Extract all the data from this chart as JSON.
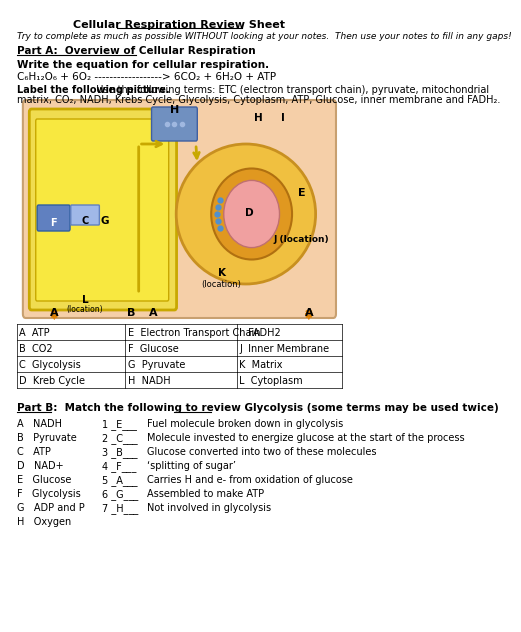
{
  "title": "Cellular Respiration Review Sheet",
  "subtitle": "Try to complete as much as possible WITHOUT looking at your notes.  Then use your notes to fill in any gaps!",
  "part_a_header": "Part A:  Overview of Cellular Respiration",
  "write_eq": "Write the equation for cellular respiration.",
  "equation": "C₆H₁₂O₆ + 6O₂ ------------------> 6CO₂ + 6H₂O + ATP",
  "label_instr_bold": "Label the following picture.",
  "label_instr_rest": "  Use the following terms: ETC (electron transport chain), pyruvate, mitochondrial",
  "label_instr_line2": "matrix, CO₂, NADH, Krebs Cycle, Glycolysis, Cytoplasm, ATP, Glucose, inner membrane and FADH₂.",
  "table_rows": [
    [
      "A  ATP",
      "E  Electron Transport Chain",
      "I  FADH2"
    ],
    [
      "B  CO2",
      "F  Glucose",
      "J  Inner Membrane"
    ],
    [
      "C  Glycolysis",
      "G  Pyruvate",
      "K  Matrix"
    ],
    [
      "D  Kreb Cycle",
      "H  NADH",
      "L  Cytoplasm"
    ]
  ],
  "part_b_header": "Part B:  Match the following to review Glycolysis (some terms may be used twice)",
  "part_b_left": [
    "A   NADH",
    "B   Pyruvate",
    "C   ATP",
    "D   NAD+",
    "E   Glucose",
    "F   Glycolysis",
    "G   ADP and P",
    "H   Oxygen"
  ],
  "part_b_mid": [
    "1 _E___",
    "2 _C___",
    "3 _B___",
    "4 _F___",
    "5 _A___",
    "6 _G___",
    "7 _H___"
  ],
  "part_b_right": [
    "Fuel molecule broken down in glycolysis",
    "Molecule invested to energize glucose at the start of the process",
    "Glucose converted into two of these molecules",
    "‘splitting of sugar’",
    "Carries H and e- from oxidation of glucose",
    "Assembled to make ATP",
    "Not involved in glycolysis"
  ],
  "bg_color": "#ffffff"
}
